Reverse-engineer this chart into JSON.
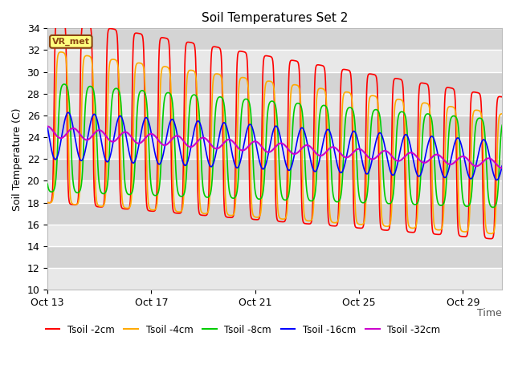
{
  "title": "Soil Temperatures Set 2",
  "xlabel": "Time",
  "ylabel": "Soil Temperature (C)",
  "ylim": [
    10,
    34
  ],
  "yticks": [
    10,
    12,
    14,
    16,
    18,
    20,
    22,
    24,
    26,
    28,
    30,
    32,
    34
  ],
  "xtick_positions": [
    0,
    4,
    8,
    12,
    16
  ],
  "xtick_labels": [
    "Oct 13",
    "Oct 17",
    "Oct 21",
    "Oct 25",
    "Oct 29"
  ],
  "bg_color": "#e8e8e8",
  "band_color": "#d4d4d4",
  "fig_color": "#ffffff",
  "grid_color": "#ffffff",
  "annotation_text": "VR_met",
  "annotation_bg": "#ffff80",
  "annotation_border": "#8B4513",
  "lines": [
    {
      "label": "Tsoil -2cm",
      "color": "#ff0000",
      "lw": 1.2
    },
    {
      "label": "Tsoil -4cm",
      "color": "#ffaa00",
      "lw": 1.2
    },
    {
      "label": "Tsoil -8cm",
      "color": "#00cc00",
      "lw": 1.2
    },
    {
      "label": "Tsoil -16cm",
      "color": "#0000ff",
      "lw": 1.2
    },
    {
      "label": "Tsoil -32cm",
      "color": "#cc00cc",
      "lw": 1.5
    }
  ],
  "n_days": 18,
  "xlim": [
    0,
    17.5
  ]
}
